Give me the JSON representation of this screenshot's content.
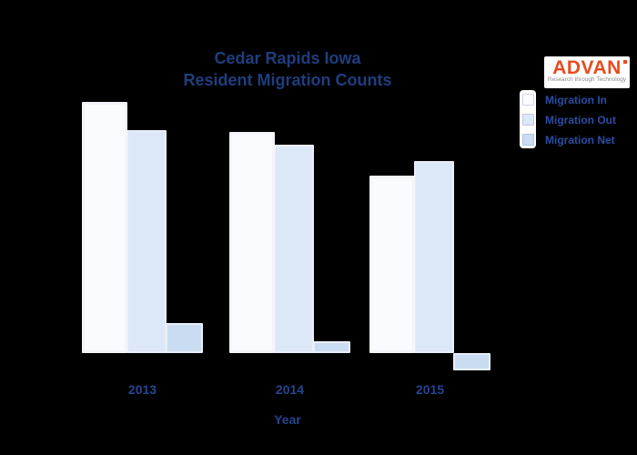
{
  "background": "#000000",
  "title": {
    "line1": "Cedar Rapids Iowa",
    "line2": "Resident Migration Counts"
  },
  "logo": {
    "name": "ADVAN",
    "tagline": "Research through Technology",
    "text_color": "#e84b1f",
    "bg_color": "#ffffff"
  },
  "legend": {
    "items": [
      {
        "label": "Migration In",
        "color": "#fafbfe"
      },
      {
        "label": "Migration Out",
        "color": "#dce7f7"
      },
      {
        "label": "Migration Net",
        "color": "#c9dcf2"
      }
    ]
  },
  "x_axis": {
    "title": "Year"
  },
  "chart_data": {
    "type": "bar",
    "title": "Cedar Rapids Iowa Resident Migration Counts",
    "categories": [
      "2013",
      "2014",
      "2015"
    ],
    "series": [
      {
        "name": "Migration In",
        "color": "#fafbfe",
        "values": [
          276,
          243,
          195
        ]
      },
      {
        "name": "Migration Out",
        "color": "#dce7f7",
        "values": [
          245,
          229,
          211
        ]
      },
      {
        "name": "Migration Net",
        "color": "#c9dcf2",
        "values": [
          33,
          13,
          -19
        ]
      }
    ],
    "xlabel": "Year",
    "ylabel": "",
    "y_axis_visible": false,
    "grid": false,
    "legend_position": "top-right",
    "units": "unlabeled (values estimated from bar heights, relative scale)"
  }
}
